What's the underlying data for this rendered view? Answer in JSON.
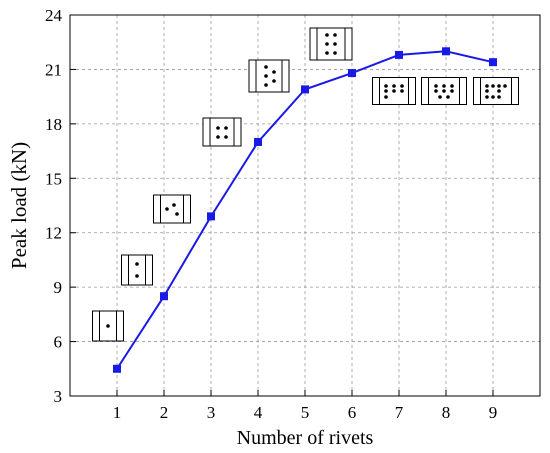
{
  "chart_data": {
    "type": "line",
    "title": "",
    "xlabel": "Number of rivets",
    "ylabel": "Peak load (kN)",
    "xlim": [
      0,
      10
    ],
    "ylim": [
      3,
      24
    ],
    "xticks": [
      1,
      2,
      3,
      4,
      5,
      6,
      7,
      8,
      9
    ],
    "yticks": [
      3,
      6,
      9,
      12,
      15,
      18,
      21,
      24
    ],
    "grid": true,
    "series": [
      {
        "x": [
          1,
          2,
          3,
          4,
          5,
          6,
          7,
          8,
          9
        ],
        "y": [
          4.5,
          8.5,
          12.9,
          17.0,
          19.9,
          20.8,
          21.8,
          22.0,
          21.4
        ]
      }
    ],
    "colors": {
      "line": "#1a1ae6",
      "grid": "#999999",
      "axis": "#000000"
    },
    "annotations": "rivet layout schematic icons shown next to each data point"
  }
}
